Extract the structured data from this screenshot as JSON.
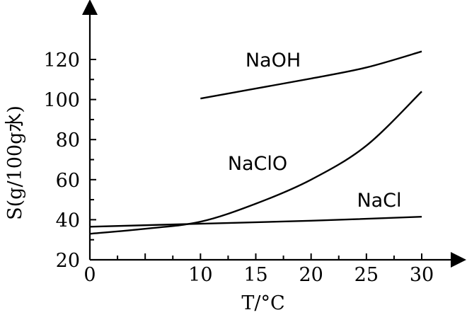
{
  "chart_data": {
    "type": "line",
    "title": "",
    "xlabel": "T/°C",
    "ylabel": "S(g/100g水)",
    "xlim": [
      0,
      30
    ],
    "ylim": [
      20,
      120
    ],
    "x_ticks": [
      0,
      10,
      15,
      20,
      25,
      30
    ],
    "y_ticks": [
      20,
      40,
      60,
      80,
      100,
      120
    ],
    "grid": false,
    "series": [
      {
        "name": "NaOH",
        "x": [
          10,
          15,
          20,
          25,
          30
        ],
        "y": [
          100.5,
          105.5,
          110.5,
          116,
          124
        ]
      },
      {
        "name": "NaClO",
        "x": [
          0,
          5,
          10,
          15,
          20,
          25,
          30
        ],
        "y": [
          33,
          35.5,
          39,
          48,
          60,
          77,
          104
        ]
      },
      {
        "name": "NaCl",
        "x": [
          0,
          10,
          20,
          30
        ],
        "y": [
          36.5,
          38,
          39.5,
          41.5
        ]
      }
    ]
  }
}
